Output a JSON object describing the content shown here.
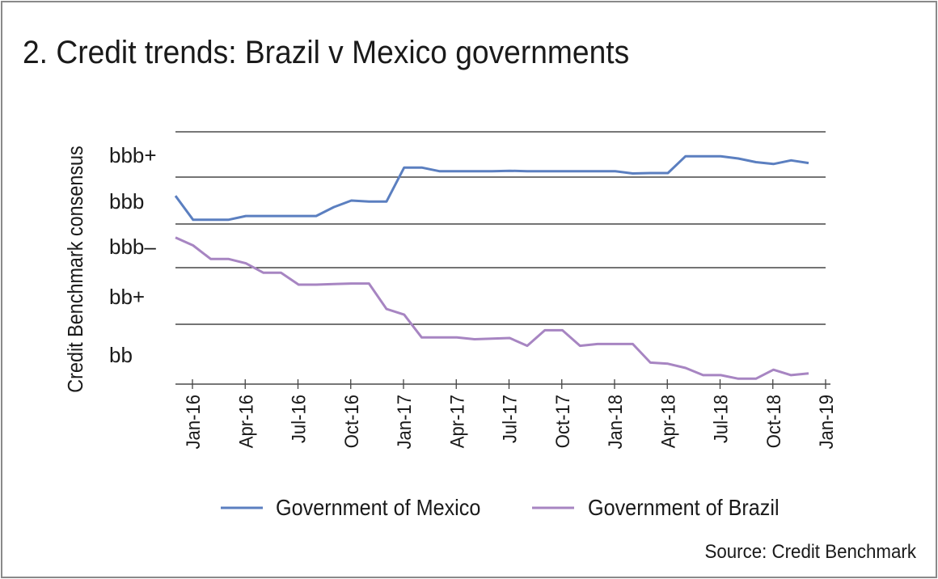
{
  "chart_data": {
    "type": "line",
    "title": "2. Credit trends: Brazil v Mexico governments",
    "ylabel": "Credit Benchmark consensus",
    "xlabel": "",
    "source": "Source: Credit Benchmark",
    "y_categories": [
      "bb",
      "bb+",
      "bbb–",
      "bbb",
      "bbb+"
    ],
    "ylim_note_units": "rating notch bands (bb band = 0–1 … bbb+ band = 4–5)",
    "ylim": [
      0,
      5
    ],
    "x_tick_labels": [
      "Jan-16",
      "Apr-16",
      "Jul-16",
      "Oct-16",
      "Jan-17",
      "Apr-17",
      "Jul-17",
      "Oct-17",
      "Jan-18",
      "Apr-18",
      "Jul-18",
      "Oct-18",
      "Jan-19"
    ],
    "x": [
      "Dec-15",
      "Jan-16",
      "Feb-16",
      "Mar-16",
      "Apr-16",
      "May-16",
      "Jun-16",
      "Jul-16",
      "Aug-16",
      "Sep-16",
      "Oct-16",
      "Nov-16",
      "Dec-16",
      "Jan-17",
      "Feb-17",
      "Mar-17",
      "Apr-17",
      "May-17",
      "Jun-17",
      "Jul-17",
      "Aug-17",
      "Sep-17",
      "Oct-17",
      "Nov-17",
      "Dec-17",
      "Jan-18",
      "Feb-18",
      "Mar-18",
      "Apr-18",
      "May-18",
      "Jun-18",
      "Jul-18",
      "Aug-18",
      "Sep-18",
      "Oct-18",
      "Nov-18",
      "Dec-18"
    ],
    "series": [
      {
        "name": "Government of Mexico",
        "color": "#5b7fc0",
        "values": [
          3.6,
          3.09,
          3.09,
          3.09,
          3.17,
          3.17,
          3.17,
          3.17,
          3.17,
          3.36,
          3.5,
          3.48,
          3.48,
          4.21,
          4.21,
          4.13,
          4.13,
          4.13,
          4.13,
          4.14,
          4.13,
          4.13,
          4.13,
          4.13,
          4.13,
          4.13,
          4.08,
          4.09,
          4.09,
          4.46,
          4.46,
          4.46,
          4.41,
          4.33,
          4.29,
          4.37,
          4.31
        ]
      },
      {
        "name": "Government of Brazil",
        "color": "#a785c2",
        "values": [
          2.69,
          2.51,
          2.2,
          2.2,
          2.1,
          1.91,
          1.91,
          1.7,
          1.7,
          1.71,
          1.72,
          1.72,
          1.27,
          1.17,
          0.78,
          0.78,
          0.78,
          0.75,
          0.76,
          0.77,
          0.64,
          0.9,
          0.9,
          0.64,
          0.67,
          0.67,
          0.67,
          0.36,
          0.34,
          0.27,
          0.15,
          0.15,
          0.09,
          0.09,
          0.24,
          0.15,
          0.18
        ]
      }
    ],
    "grid": true,
    "legend": "bottom"
  }
}
